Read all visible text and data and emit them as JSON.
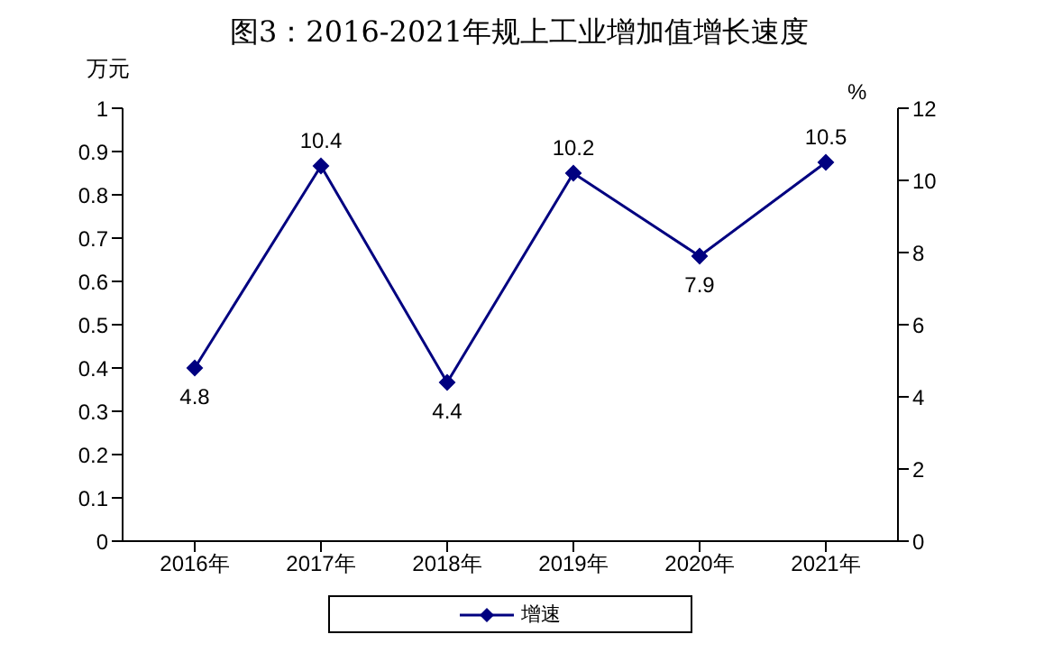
{
  "chart_data": {
    "type": "line",
    "title": "图3：2016-2021年规上工业增加值增长速度",
    "ylabel": "万元",
    "y2label": "%",
    "categories": [
      "2016年",
      "2017年",
      "2018年",
      "2019年",
      "2020年",
      "2021年"
    ],
    "series": [
      {
        "name": "增速",
        "color": "#000080",
        "axis": "y2",
        "values": [
          4.8,
          10.4,
          4.4,
          10.2,
          7.9,
          10.5
        ]
      }
    ],
    "ylim": [
      0,
      1
    ],
    "yticks": [
      0,
      0.1,
      0.2,
      0.3,
      0.4,
      0.5,
      0.6,
      0.7,
      0.8,
      0.9,
      1
    ],
    "y2lim": [
      0,
      12
    ],
    "y2ticks": [
      0,
      2,
      4,
      6,
      8,
      10,
      12
    ],
    "marker": "diamond",
    "line_style": "solid",
    "data_labels": true,
    "legend": "bottom",
    "grid": false
  }
}
